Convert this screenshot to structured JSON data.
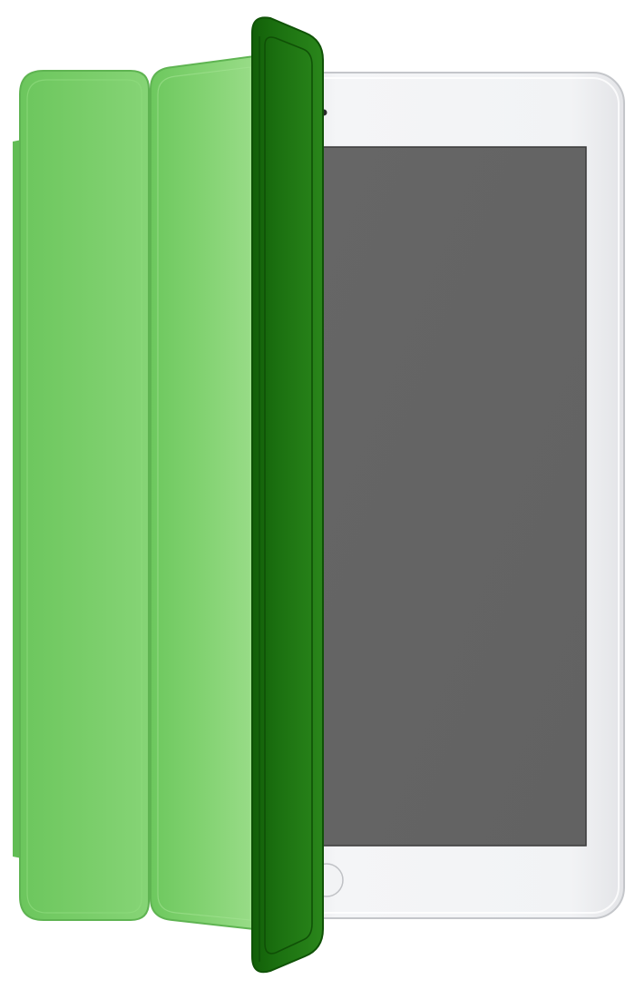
{
  "illustration": {
    "subject": "tablet-with-smart-cover",
    "colors": {
      "background": "#ffffff",
      "tablet_body": "#f2f3f5",
      "tablet_edge": "#c9cbcf",
      "screen": "#646464",
      "cover_light_green": "#7fd26f",
      "cover_mid_green": "#6cc65d",
      "cover_dark_green": "#1f7a12",
      "cover_darkest_green": "#125f08"
    },
    "icons": {
      "camera": "camera-dot-icon",
      "home_button": "home-button-icon"
    }
  }
}
